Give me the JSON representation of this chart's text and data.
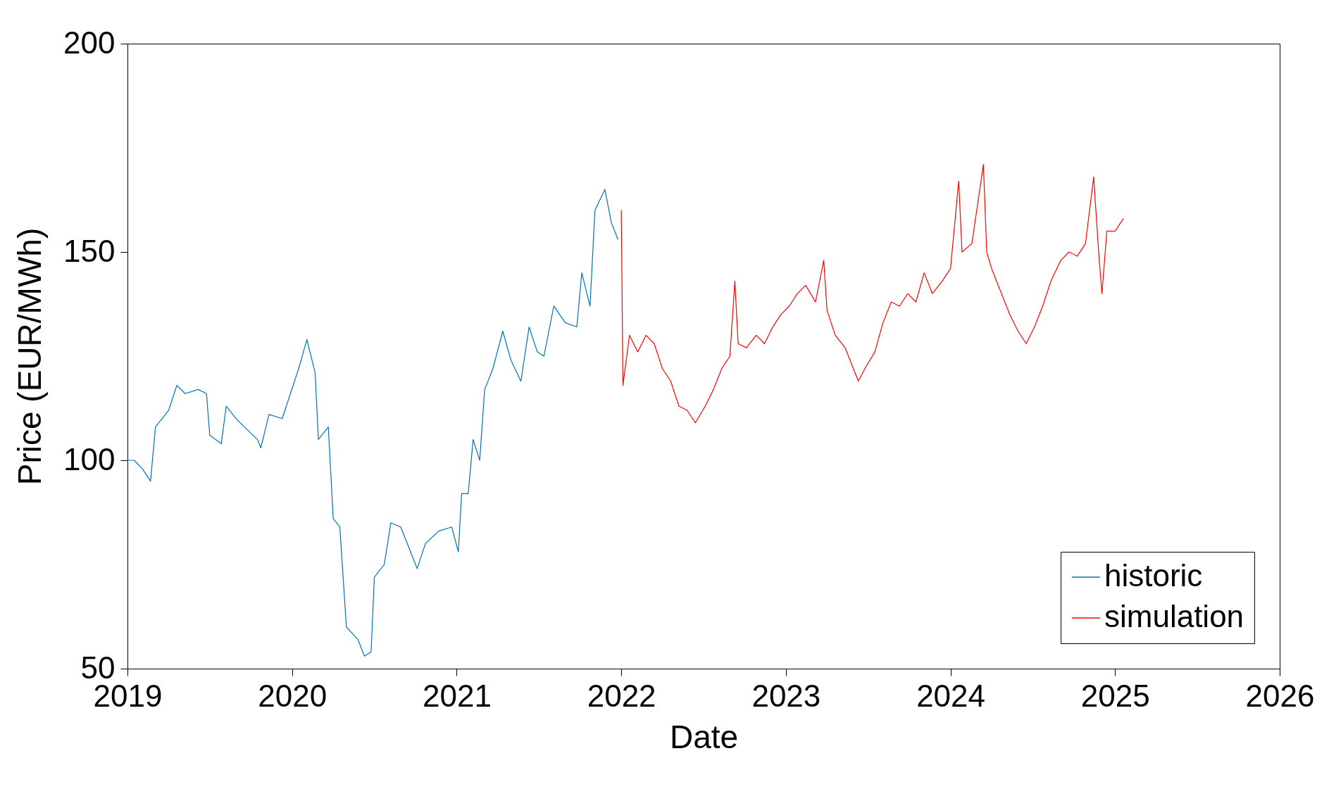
{
  "chart_data": {
    "type": "line",
    "xlabel": "Date",
    "ylabel": "Price (EUR/MWh)",
    "xlim": [
      2019,
      2026
    ],
    "xticks": [
      2019,
      2020,
      2021,
      2022,
      2023,
      2024,
      2025,
      2026
    ],
    "ylim": [
      50,
      200
    ],
    "yticks": [
      50,
      100,
      150,
      200
    ],
    "grid": false,
    "legend": "bottom right",
    "series": [
      {
        "name": "historic",
        "color": "#0072bd",
        "x": [
          2019.0,
          2019.04,
          2019.09,
          2019.14,
          2019.17,
          2019.25,
          2019.3,
          2019.35,
          2019.43,
          2019.48,
          2019.5,
          2019.57,
          2019.6,
          2019.66,
          2019.71,
          2019.79,
          2019.81,
          2019.86,
          2019.94,
          2019.99,
          2020.04,
          2020.09,
          2020.14,
          2020.16,
          2020.22,
          2020.25,
          2020.29,
          2020.33,
          2020.4,
          2020.44,
          2020.48,
          2020.5,
          2020.56,
          2020.6,
          2020.66,
          2020.71,
          2020.76,
          2020.81,
          2020.89,
          2020.97,
          2021.01,
          2021.03,
          2021.07,
          2021.1,
          2021.14,
          2021.17,
          2021.22,
          2021.28,
          2021.33,
          2021.39,
          2021.44,
          2021.49,
          2021.53,
          2021.59,
          2021.66,
          2021.73,
          2021.76,
          2021.81,
          2021.84,
          2021.9,
          2021.94,
          2021.98
        ],
        "values": [
          100,
          100,
          98,
          95,
          108,
          112,
          118,
          116,
          117,
          116,
          106,
          104,
          113,
          110,
          108,
          105,
          103,
          111,
          110,
          116,
          122,
          129,
          121,
          105,
          108,
          86,
          84,
          60,
          57,
          53,
          54,
          72,
          75,
          85,
          84,
          79,
          74,
          80,
          83,
          84,
          78,
          92,
          92,
          105,
          100,
          117,
          122,
          131,
          124,
          119,
          132,
          126,
          125,
          137,
          133,
          132,
          145,
          137,
          160,
          165,
          157,
          153
        ]
      },
      {
        "name": "simulation",
        "color": "#ff0000",
        "x": [
          2022.0,
          2022.01,
          2022.05,
          2022.1,
          2022.15,
          2022.2,
          2022.25,
          2022.3,
          2022.35,
          2022.4,
          2022.45,
          2022.51,
          2022.56,
          2022.61,
          2022.66,
          2022.69,
          2022.71,
          2022.76,
          2022.82,
          2022.87,
          2022.92,
          2022.97,
          2023.02,
          2023.07,
          2023.12,
          2023.18,
          2023.23,
          2023.25,
          2023.3,
          2023.36,
          2023.41,
          2023.44,
          2023.48,
          2023.54,
          2023.59,
          2023.64,
          2023.69,
          2023.74,
          2023.79,
          2023.84,
          2023.89,
          2023.95,
          2024.0,
          2024.05,
          2024.07,
          2024.13,
          2024.2,
          2024.22,
          2024.25,
          2024.31,
          2024.36,
          2024.41,
          2024.46,
          2024.51,
          2024.56,
          2024.61,
          2024.67,
          2024.72,
          2024.77,
          2024.82,
          2024.87,
          2024.9,
          2024.92,
          2024.95,
          2025.0,
          2025.05
        ],
        "values": [
          160,
          118,
          130,
          126,
          130,
          128,
          122,
          119,
          113,
          112,
          109,
          113,
          117,
          122,
          125,
          143,
          128,
          127,
          130,
          128,
          132,
          135,
          137,
          140,
          142,
          138,
          148,
          136,
          130,
          127,
          122,
          119,
          122,
          126,
          133,
          138,
          137,
          140,
          138,
          145,
          140,
          143,
          146,
          167,
          150,
          152,
          171,
          150,
          146,
          140,
          135,
          131,
          128,
          132,
          137,
          143,
          148,
          150,
          149,
          152,
          168,
          150,
          140,
          155,
          155,
          158
        ]
      }
    ]
  }
}
